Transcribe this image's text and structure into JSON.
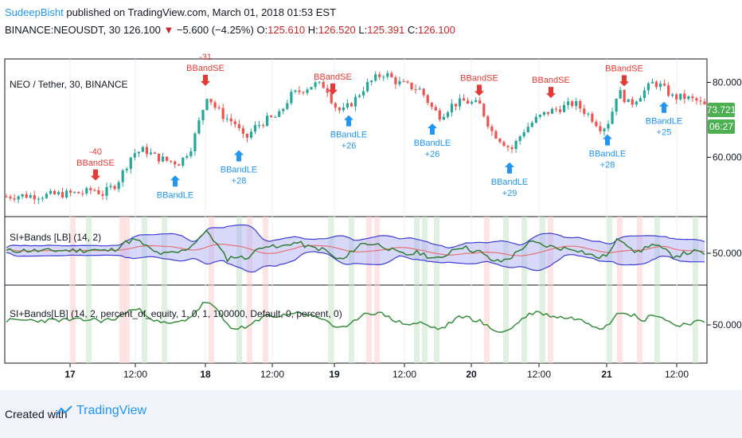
{
  "header": {
    "author": "SudeepBisht",
    "published": " published on TradingView.com, March 01, 2018 01:53 EST",
    "symbol": "BINANCE:NEOUSDT, 30",
    "last": "126.100",
    "change": "−5.600 (−4.25%)",
    "o_label": "O:",
    "o_val": "125.610",
    "h_label": "H:",
    "h_val": "126.520",
    "l_label": "L:",
    "l_val": "125.391",
    "c_label": "C:",
    "c_val": "126.100"
  },
  "price_pane": {
    "title": "NEO / Tether, 30, BINANCE",
    "last_price": "73.721",
    "countdown": "06:27",
    "colors": {
      "up": "#26a69a",
      "down": "#ef5350",
      "buy": "#2196f3",
      "sell": "#e53935"
    }
  },
  "si_pane": {
    "title": "SI+Bands [LB] (14, 2)",
    "tick": "50.0000"
  },
  "eq_pane": {
    "title": "SI+Bands[LB] (14, 2, percent_of_equity, 1, 0, 1, 100000, Default, 0, percent, 0)",
    "tick": "50.0000"
  },
  "footer": {
    "created_with": "Created with",
    "brand": "TradingView"
  },
  "chart_data": [
    {
      "type": "candlestick",
      "series_name": "NEO / Tether, 30, BINANCE",
      "y_ticks": [
        "80.000",
        "60.000"
      ],
      "x_ticks": [
        "17",
        "12:00",
        "18",
        "12:00",
        "19",
        "12:00",
        "20",
        "12:00",
        "21",
        "12:00"
      ],
      "ylim": [
        45,
        85
      ],
      "close_path": [
        [
          0,
          49.5
        ],
        [
          20,
          49.8
        ],
        [
          40,
          49.7
        ],
        [
          60,
          50.0
        ],
        [
          80,
          50.3
        ],
        [
          100,
          50.6
        ],
        [
          110,
          51.5
        ],
        [
          122,
          50.2
        ],
        [
          140,
          53.0
        ],
        [
          150,
          57.0
        ],
        [
          160,
          61.0
        ],
        [
          175,
          62.0
        ],
        [
          190,
          60.0
        ],
        [
          205,
          59.0
        ],
        [
          220,
          58.5
        ],
        [
          235,
          63.0
        ],
        [
          245,
          70.0
        ],
        [
          255,
          77.0
        ],
        [
          262,
          74.0
        ],
        [
          275,
          71.0
        ],
        [
          290,
          69.0
        ],
        [
          302,
          64.5
        ],
        [
          315,
          68.0
        ],
        [
          330,
          70.0
        ],
        [
          345,
          71.0
        ],
        [
          360,
          76.5
        ],
        [
          375,
          78.0
        ],
        [
          390,
          79.5
        ],
        [
          405,
          79.0
        ],
        [
          415,
          74.0
        ],
        [
          425,
          72.0
        ],
        [
          440,
          75.0
        ],
        [
          455,
          79.0
        ],
        [
          470,
          81.5
        ],
        [
          480,
          82.5
        ],
        [
          495,
          80.0
        ],
        [
          510,
          79.0
        ],
        [
          525,
          78.0
        ],
        [
          540,
          73.0
        ],
        [
          550,
          71.0
        ],
        [
          565,
          74.0
        ],
        [
          580,
          75.0
        ],
        [
          600,
          74.0
        ],
        [
          615,
          67.0
        ],
        [
          630,
          64.0
        ],
        [
          640,
          62.0
        ],
        [
          655,
          67.0
        ],
        [
          670,
          70.0
        ],
        [
          685,
          72.0
        ],
        [
          700,
          73.0
        ],
        [
          720,
          74.5
        ],
        [
          740,
          71.0
        ],
        [
          755,
          67.5
        ],
        [
          765,
          70.0
        ],
        [
          775,
          78.0
        ],
        [
          790,
          74.0
        ],
        [
          805,
          77.0
        ],
        [
          820,
          80.0
        ],
        [
          830,
          79.0
        ],
        [
          845,
          76.0
        ],
        [
          860,
          76.0
        ],
        [
          875,
          75.0
        ],
        [
          885,
          73.7
        ]
      ],
      "signals": [
        {
          "side": "sell",
          "label": "BBandSE",
          "value": "-40",
          "x": 120
        },
        {
          "side": "buy",
          "label": "BBandLE",
          "value": "",
          "x": 220
        },
        {
          "side": "sell",
          "label": "BBandSE",
          "value": "-31",
          "x": 258
        },
        {
          "side": "buy",
          "label": "BBandLE",
          "value": "+28",
          "x": 300
        },
        {
          "side": "sell",
          "label": "BBandSE",
          "value": "",
          "x": 418
        },
        {
          "side": "buy",
          "label": "BBandLE",
          "value": "+26",
          "x": 438
        },
        {
          "side": "buy",
          "label": "BBandLE",
          "value": "+26",
          "x": 543
        },
        {
          "side": "sell",
          "label": "BBandSE",
          "value": "",
          "x": 602
        },
        {
          "side": "buy",
          "label": "BBandLE",
          "value": "+29",
          "x": 640
        },
        {
          "side": "sell",
          "label": "BBandSE",
          "value": "",
          "x": 692
        },
        {
          "side": "buy",
          "label": "BBandLE",
          "value": "+28",
          "x": 763
        },
        {
          "side": "sell",
          "label": "BBandSE",
          "value": "",
          "x": 784
        },
        {
          "side": "buy",
          "label": "BBandLE",
          "value": "+25",
          "x": 834
        }
      ]
    },
    {
      "type": "line",
      "series": [
        {
          "name": "si",
          "color": "#2e7d32"
        },
        {
          "name": "basis",
          "color": "#e57373"
        },
        {
          "name": "bands",
          "color": "#3d3dd6"
        }
      ]
    },
    {
      "type": "line",
      "series": [
        {
          "name": "equity",
          "color": "#388e3c"
        }
      ]
    }
  ]
}
